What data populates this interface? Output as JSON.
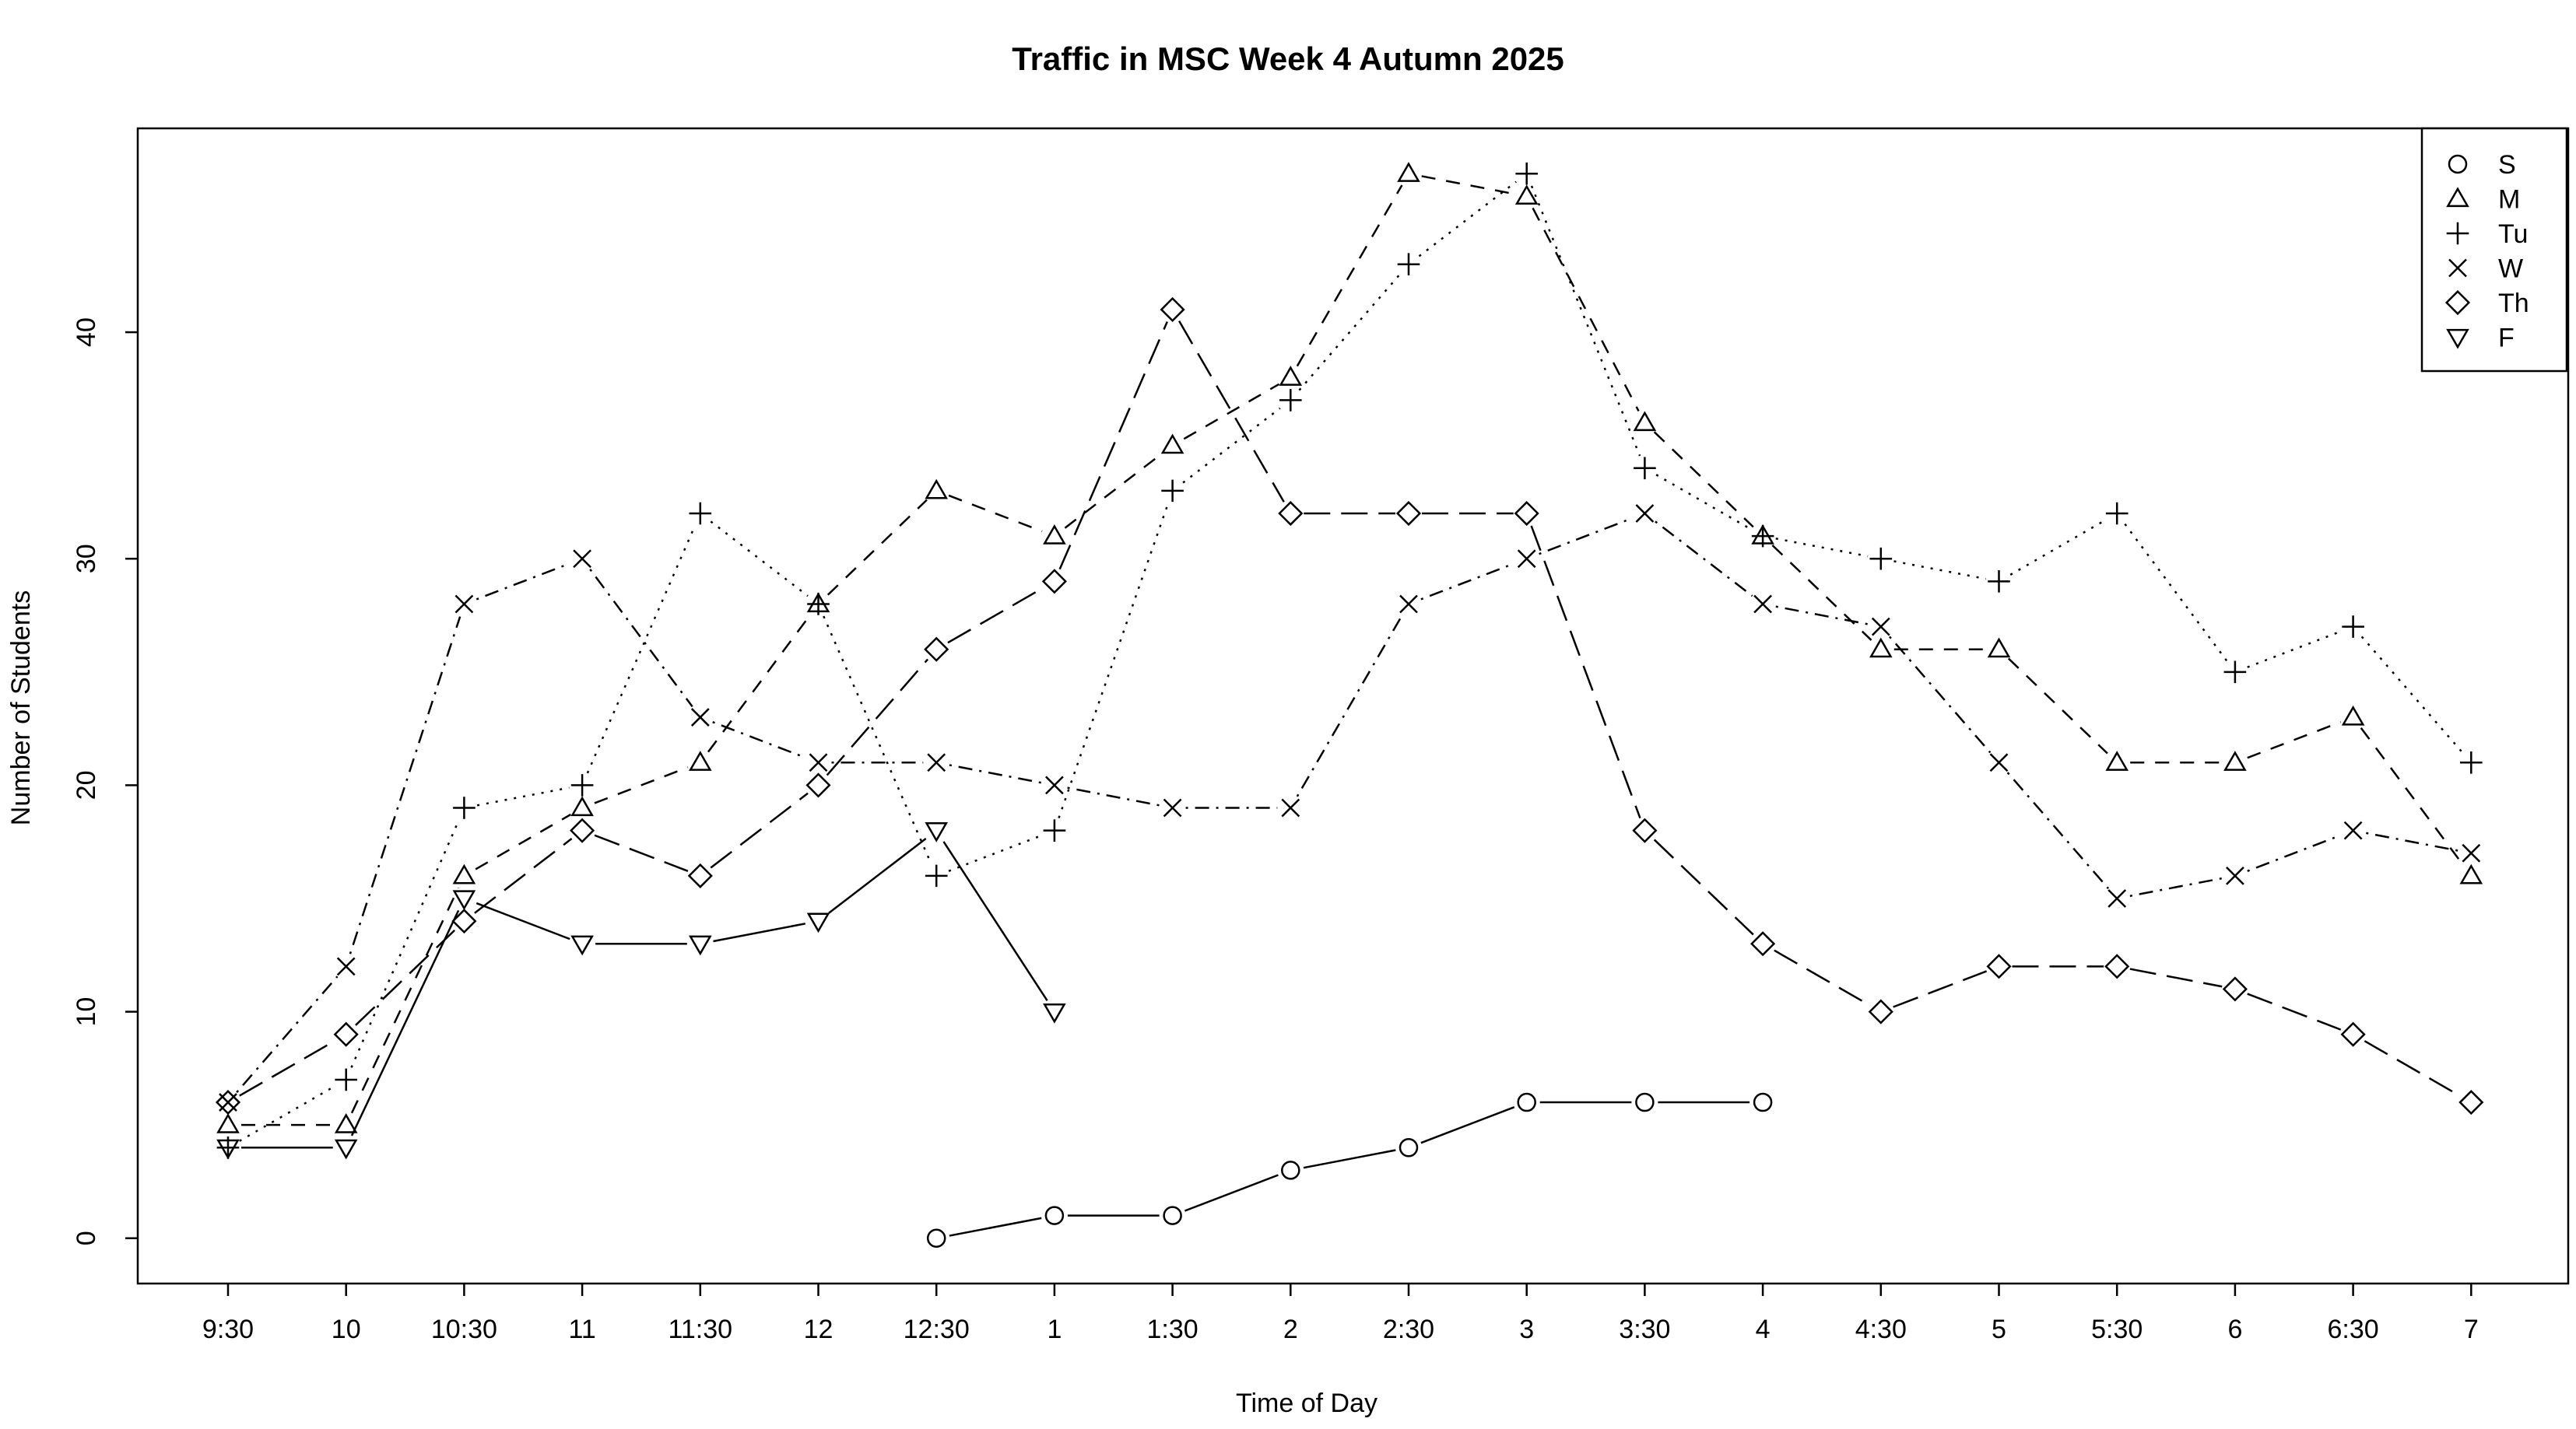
{
  "chart_data": {
    "type": "line",
    "title": "Traffic in MSC Week 4 Autumn 2025",
    "xlabel": "Time of Day",
    "ylabel": "Number of Students",
    "categories": [
      "9:30",
      "10",
      "10:30",
      "11",
      "11:30",
      "12",
      "12:30",
      "1",
      "1:30",
      "2",
      "2:30",
      "3",
      "3:30",
      "4",
      "4:30",
      "5",
      "5:30",
      "6",
      "6:30",
      "7"
    ],
    "ylim": [
      -2,
      49
    ],
    "yticks": [
      0,
      10,
      20,
      30,
      40
    ],
    "grid": false,
    "legend_position": "top-right",
    "series": [
      {
        "name": "S",
        "marker": "circle",
        "line": "solid",
        "values": [
          null,
          null,
          null,
          null,
          null,
          null,
          0,
          1,
          1,
          3,
          4,
          6,
          6,
          6,
          null,
          null,
          null,
          null,
          null,
          null
        ]
      },
      {
        "name": "M",
        "marker": "triangle-up",
        "line": "dashed",
        "values": [
          5,
          5,
          16,
          19,
          21,
          28,
          33,
          31,
          35,
          38,
          47,
          46,
          36,
          31,
          26,
          26,
          21,
          21,
          23,
          16
        ]
      },
      {
        "name": "Tu",
        "marker": "plus",
        "line": "dotted",
        "values": [
          4,
          7,
          19,
          20,
          32,
          28,
          16,
          18,
          33,
          37,
          43,
          47,
          34,
          31,
          30,
          29,
          32,
          25,
          27,
          21
        ]
      },
      {
        "name": "W",
        "marker": "cross",
        "line": "dotdash",
        "values": [
          6,
          12,
          28,
          30,
          23,
          21,
          21,
          20,
          19,
          19,
          28,
          30,
          32,
          28,
          27,
          21,
          15,
          16,
          18,
          17
        ]
      },
      {
        "name": "Th",
        "marker": "diamond",
        "line": "longdash",
        "values": [
          6,
          9,
          14,
          18,
          16,
          20,
          26,
          29,
          41,
          32,
          32,
          32,
          18,
          13,
          10,
          12,
          12,
          11,
          9,
          6
        ]
      },
      {
        "name": "F",
        "marker": "triangle-down",
        "line": "solid",
        "values": [
          4,
          4,
          15,
          13,
          13,
          14,
          18,
          10,
          null,
          null,
          null,
          null,
          null,
          null,
          null,
          null,
          null,
          null,
          null,
          null
        ]
      }
    ]
  }
}
